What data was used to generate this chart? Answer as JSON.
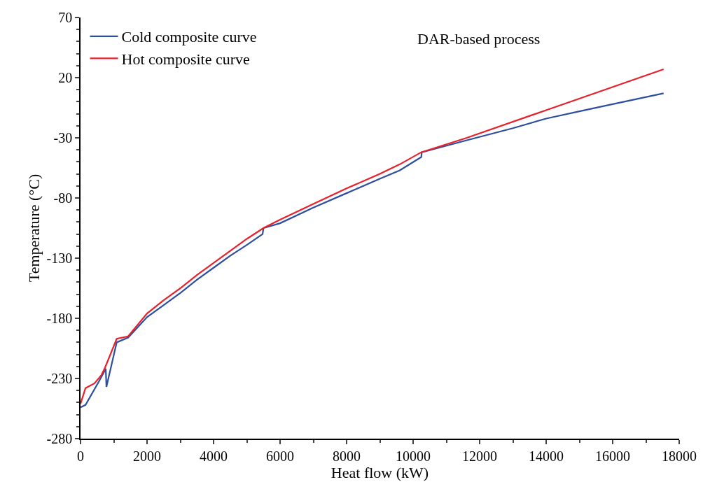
{
  "chart_data": {
    "type": "line",
    "xlabel": "Heat flow (kW)",
    "ylabel": "Temperature (°C)",
    "annotations": [
      "DAR-based process"
    ],
    "series": [
      {
        "name": "Cold composite curve",
        "color": "#2e4fa0",
        "x": [
          0,
          150,
          562,
          758,
          779,
          1088,
          1432,
          2000,
          2500,
          3000,
          3500,
          4000,
          4500,
          5000,
          5474,
          5500,
          6000,
          7000,
          8000,
          9000,
          9600,
          10245,
          10260,
          11614,
          13000,
          14000,
          15000,
          16000,
          17530
        ],
        "values": [
          -254,
          -252,
          -232,
          -222,
          -237,
          -200,
          -196,
          -179,
          -169,
          -159,
          -148,
          -138,
          -128,
          -119,
          -110,
          -105,
          -101,
          -88,
          -76,
          -64,
          -57,
          -46,
          -42,
          -32,
          -22,
          -14,
          -8,
          -2,
          7
        ]
      },
      {
        "name": "Hot composite curve",
        "color": "#e8202a",
        "x": [
          0,
          150,
          421,
          632,
          737,
          1088,
          1432,
          2000,
          2500,
          3000,
          3500,
          4000,
          4500,
          5000,
          5500,
          6000,
          7000,
          8000,
          9000,
          9600,
          10245,
          11614,
          14000,
          17530
        ],
        "values": [
          -251,
          -238,
          -234,
          -227,
          -221,
          -197,
          -195,
          -176,
          -165,
          -155,
          -144,
          -134,
          -124,
          -114,
          -105,
          -98,
          -85,
          -72,
          -60,
          -52,
          -42,
          -30,
          -7,
          27
        ]
      }
    ],
    "xlim": [
      0,
      18000
    ],
    "xticks": [
      0,
      2000,
      4000,
      6000,
      8000,
      10000,
      12000,
      14000,
      16000,
      18000
    ],
    "ylim": [
      -280,
      70
    ],
    "yticks": [
      -280,
      -230,
      -180,
      -130,
      -80,
      -30,
      20,
      70
    ],
    "legend": "top left",
    "marker": "none",
    "line_style": "solid"
  }
}
